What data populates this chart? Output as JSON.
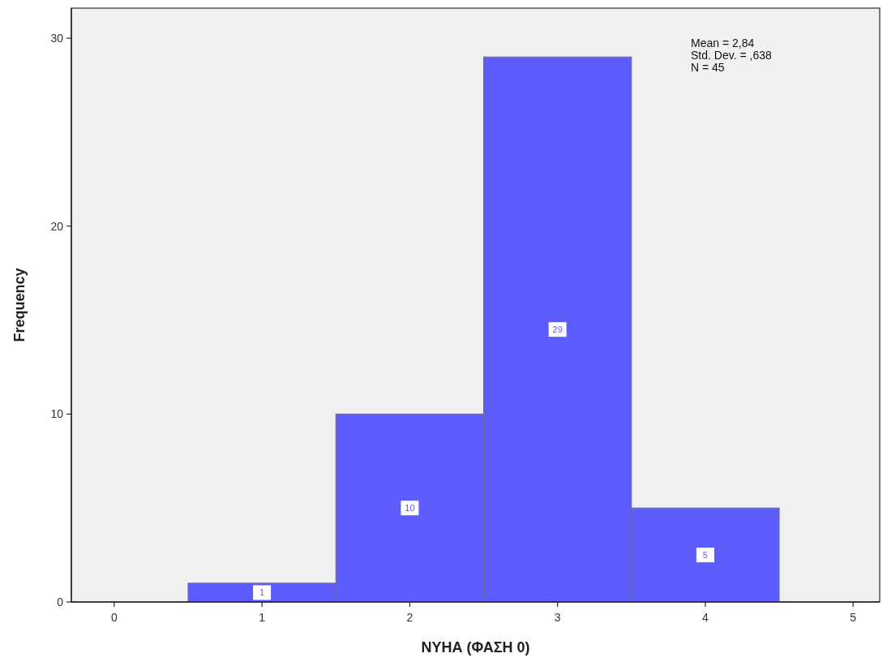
{
  "chart_data": {
    "type": "histogram",
    "xlabel": "ΝΥΗΑ (ΦΑΣΗ 0)",
    "ylabel": "Frequency",
    "bins": [
      0.5,
      1.5,
      2.5,
      3.5,
      4.5
    ],
    "values": [
      1,
      10,
      29,
      5
    ],
    "color": "#5c5cff",
    "xlim": [
      -0.29,
      5.18
    ],
    "xticks": [
      0,
      1,
      2,
      3,
      4,
      5
    ],
    "ylim": [
      0,
      31.6
    ],
    "yticks": [
      0,
      10,
      20,
      30
    ],
    "data_labels": true,
    "annotations": [
      "Mean = 2,84",
      "Std. Dev. = ,638",
      "N = 45"
    ]
  }
}
